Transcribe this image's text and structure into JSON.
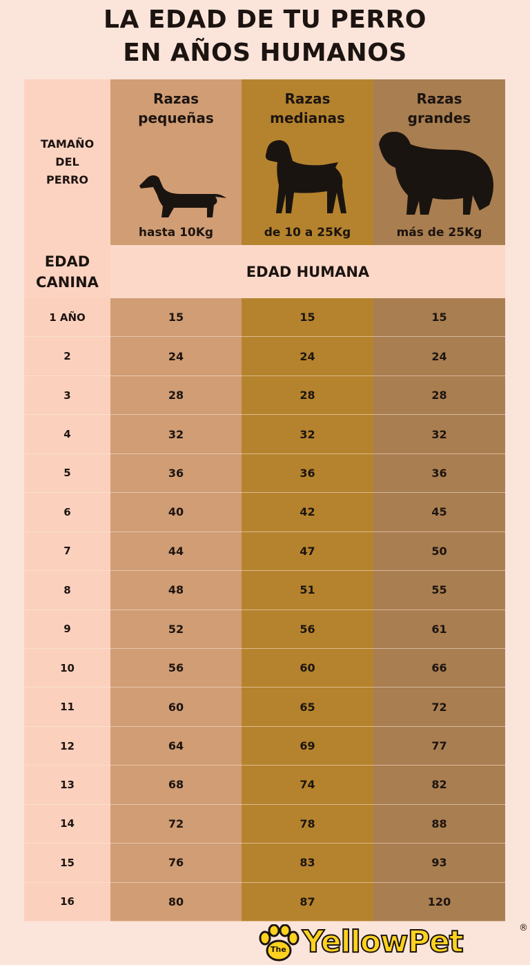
{
  "header": {
    "title_line1": "LA EDAD DE TU PERRO",
    "title_line2": "EN AÑOS HUMANOS"
  },
  "table": {
    "size_label": "TAMAÑO DEL PERRO",
    "columns": [
      {
        "name": "Razas pequeñas",
        "weight": "hasta 10Kg"
      },
      {
        "name": "Razas medianas",
        "weight": "de 10 a 25Kg"
      },
      {
        "name": "Razas grandes",
        "weight": "más de 25Kg"
      }
    ],
    "age_label": "EDAD CANINA",
    "human_label": "EDAD HUMANA",
    "rows": [
      {
        "age": "1 AÑO",
        "values": [
          15,
          15,
          15
        ]
      },
      {
        "age": "2",
        "values": [
          24,
          24,
          24
        ]
      },
      {
        "age": "3",
        "values": [
          28,
          28,
          28
        ]
      },
      {
        "age": "4",
        "values": [
          32,
          32,
          32
        ]
      },
      {
        "age": "5",
        "values": [
          36,
          36,
          36
        ]
      },
      {
        "age": "6",
        "values": [
          40,
          42,
          45
        ]
      },
      {
        "age": "7",
        "values": [
          44,
          47,
          50
        ]
      },
      {
        "age": "8",
        "values": [
          48,
          51,
          55
        ]
      },
      {
        "age": "9",
        "values": [
          52,
          56,
          61
        ]
      },
      {
        "age": "10",
        "values": [
          56,
          60,
          66
        ]
      },
      {
        "age": "11",
        "values": [
          60,
          65,
          72
        ]
      },
      {
        "age": "12",
        "values": [
          64,
          69,
          77
        ]
      },
      {
        "age": "13",
        "values": [
          68,
          74,
          82
        ]
      },
      {
        "age": "14",
        "values": [
          72,
          78,
          88
        ]
      },
      {
        "age": "15",
        "values": [
          76,
          83,
          93
        ]
      },
      {
        "age": "16",
        "values": [
          80,
          87,
          120
        ]
      }
    ]
  },
  "logo": {
    "prefix": "The",
    "brand1": "Yellow",
    "brand2": "Pet",
    "mark": "®"
  }
}
